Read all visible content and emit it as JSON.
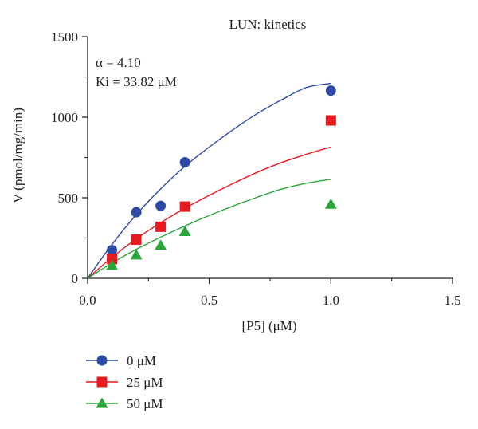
{
  "chart_data": {
    "type": "scatter",
    "title": "LUN: kinetics",
    "xlabel": "[P5] (μM)",
    "ylabel": "V (pmol/mg/min)",
    "xlim": [
      0,
      1.5
    ],
    "ylim": [
      0,
      1500
    ],
    "x_ticks": [
      0,
      0.5,
      1.0,
      1.5
    ],
    "x_tick_labels": [
      "0.0",
      "0.5",
      "1.0",
      "1.5"
    ],
    "y_ticks": [
      0,
      500,
      1000,
      1500
    ],
    "y_tick_labels": [
      "0",
      "500",
      "1000",
      "1500"
    ],
    "annotations": [
      "α = 4.10",
      "Ki = 33.82 μM"
    ],
    "grid": false,
    "legend_position": "bottom-left",
    "series": [
      {
        "name": "0 μM",
        "marker": "circle",
        "color": "#2e4aa6",
        "points": [
          [
            0.1,
            175
          ],
          [
            0.2,
            410
          ],
          [
            0.3,
            450
          ],
          [
            0.4,
            720
          ],
          [
            1.0,
            1165
          ]
        ],
        "fit": [
          [
            0,
            0
          ],
          [
            0.1,
            210
          ],
          [
            0.2,
            395
          ],
          [
            0.3,
            555
          ],
          [
            0.4,
            695
          ],
          [
            0.5,
            815
          ],
          [
            0.6,
            925
          ],
          [
            0.7,
            1025
          ],
          [
            0.8,
            1110
          ],
          [
            0.9,
            1185
          ],
          [
            1.0,
            1210
          ]
        ]
      },
      {
        "name": "25 μM",
        "marker": "square",
        "color": "#e8191e",
        "points": [
          [
            0.1,
            120
          ],
          [
            0.2,
            240
          ],
          [
            0.3,
            320
          ],
          [
            0.4,
            445
          ],
          [
            1.0,
            980
          ]
        ],
        "fit": [
          [
            0,
            0
          ],
          [
            0.1,
            130
          ],
          [
            0.2,
            245
          ],
          [
            0.3,
            345
          ],
          [
            0.4,
            435
          ],
          [
            0.5,
            515
          ],
          [
            0.6,
            590
          ],
          [
            0.7,
            660
          ],
          [
            0.8,
            720
          ],
          [
            0.9,
            770
          ],
          [
            1.0,
            815
          ]
        ]
      },
      {
        "name": "50 μM",
        "marker": "triangle",
        "color": "#2aa63a",
        "points": [
          [
            0.1,
            80
          ],
          [
            0.2,
            145
          ],
          [
            0.3,
            205
          ],
          [
            0.4,
            290
          ],
          [
            1.0,
            460
          ]
        ],
        "fit": [
          [
            0,
            0
          ],
          [
            0.1,
            95
          ],
          [
            0.2,
            180
          ],
          [
            0.3,
            255
          ],
          [
            0.4,
            325
          ],
          [
            0.5,
            390
          ],
          [
            0.6,
            450
          ],
          [
            0.7,
            505
          ],
          [
            0.8,
            555
          ],
          [
            0.9,
            590
          ],
          [
            1.0,
            615
          ]
        ]
      }
    ]
  }
}
